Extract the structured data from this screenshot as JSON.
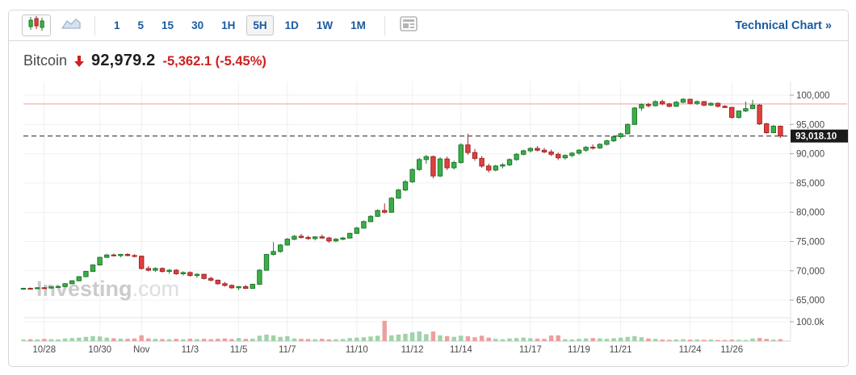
{
  "toolbar": {
    "chart_type_candles_icon": "candlestick-chart-type-icon",
    "chart_type_line_icon": "area-line-chart-type-icon",
    "timeframes": [
      {
        "label": "1",
        "selected": false
      },
      {
        "label": "5",
        "selected": false
      },
      {
        "label": "15",
        "selected": false
      },
      {
        "label": "30",
        "selected": false
      },
      {
        "label": "1H",
        "selected": false
      },
      {
        "label": "5H",
        "selected": true
      },
      {
        "label": "1D",
        "selected": false
      },
      {
        "label": "1W",
        "selected": false
      },
      {
        "label": "1M",
        "selected": false
      }
    ],
    "news_icon": "news-view-icon",
    "technical_chart_label": "Technical Chart",
    "technical_chart_arrow": "»"
  },
  "header": {
    "symbol": "Bitcoin",
    "direction": "down",
    "last_price": "92,979.2",
    "change": "-5,362.1 (-5.45%)"
  },
  "watermark": {
    "bold": "Investing",
    "light": ".com"
  },
  "chart_data": {
    "type": "candlestick",
    "title": "Bitcoin 5H candlestick chart with volume",
    "y_axis": {
      "side": "right",
      "ticks": [
        "100,000",
        "95,000",
        "90,000",
        "85,000",
        "80,000",
        "75,000",
        "70,000",
        "65,000"
      ],
      "tick_values": [
        100000,
        95000,
        90000,
        85000,
        80000,
        75000,
        70000,
        65000
      ]
    },
    "x_axis": {
      "ticks": [
        {
          "label": "10/28",
          "i": 3
        },
        {
          "label": "10/30",
          "i": 11
        },
        {
          "label": "Nov",
          "i": 17
        },
        {
          "label": "11/3",
          "i": 24
        },
        {
          "label": "11/5",
          "i": 31
        },
        {
          "label": "11/7",
          "i": 38
        },
        {
          "label": "11/10",
          "i": 48
        },
        {
          "label": "11/12",
          "i": 56
        },
        {
          "label": "11/14",
          "i": 63
        },
        {
          "label": "11/17",
          "i": 73
        },
        {
          "label": "11/19",
          "i": 80
        },
        {
          "label": "11/21",
          "i": 86
        },
        {
          "label": "11/24",
          "i": 96
        },
        {
          "label": "11/26",
          "i": 102
        }
      ]
    },
    "last_price_label": "93,018.10",
    "last_price_value": 93018.1,
    "resistance_line_value": 98500,
    "volume_axis_label": "100.0k",
    "volume_axis_value_k": 100,
    "candles": [
      [
        66950,
        67100,
        66750,
        67000
      ],
      [
        67000,
        67150,
        66850,
        66950
      ],
      [
        66950,
        67200,
        66850,
        67100
      ],
      [
        67100,
        67250,
        66950,
        67050
      ],
      [
        67050,
        67350,
        66950,
        67250
      ],
      [
        67250,
        67450,
        67100,
        67300
      ],
      [
        67300,
        67900,
        67200,
        67800
      ],
      [
        67800,
        68400,
        67700,
        68300
      ],
      [
        68300,
        69100,
        68200,
        69000
      ],
      [
        69000,
        70000,
        68900,
        69900
      ],
      [
        69900,
        71100,
        69800,
        71000
      ],
      [
        71000,
        72400,
        70900,
        72300
      ],
      [
        72300,
        72900,
        72200,
        72700
      ],
      [
        72700,
        72950,
        72450,
        72600
      ],
      [
        72600,
        72900,
        72300,
        72800
      ],
      [
        72800,
        73000,
        72500,
        72600
      ],
      [
        72600,
        72850,
        72300,
        72500
      ],
      [
        72500,
        72600,
        70200,
        70400
      ],
      [
        70400,
        70800,
        69900,
        70100
      ],
      [
        70100,
        70600,
        69800,
        70400
      ],
      [
        70400,
        70600,
        69700,
        69900
      ],
      [
        69900,
        70300,
        69500,
        70100
      ],
      [
        70100,
        70300,
        69300,
        69500
      ],
      [
        69500,
        69900,
        69200,
        69700
      ],
      [
        69700,
        69900,
        69000,
        69200
      ],
      [
        69200,
        69600,
        68800,
        69400
      ],
      [
        69400,
        69500,
        68500,
        68700
      ],
      [
        68700,
        69000,
        68200,
        68400
      ],
      [
        68400,
        68500,
        67600,
        67800
      ],
      [
        67800,
        68100,
        67300,
        67500
      ],
      [
        67500,
        67700,
        66900,
        67100
      ],
      [
        67100,
        67400,
        66700,
        67300
      ],
      [
        67300,
        67600,
        66900,
        67000
      ],
      [
        67000,
        67800,
        66900,
        67700
      ],
      [
        67700,
        70300,
        67600,
        70100
      ],
      [
        70100,
        72900,
        70000,
        72800
      ],
      [
        72800,
        74900,
        72600,
        73300
      ],
      [
        73300,
        74600,
        73100,
        74400
      ],
      [
        74400,
        75600,
        74300,
        75400
      ],
      [
        75400,
        76100,
        75200,
        75900
      ],
      [
        75900,
        76300,
        75500,
        75700
      ],
      [
        75700,
        76000,
        75300,
        75500
      ],
      [
        75500,
        75900,
        75200,
        75800
      ],
      [
        75800,
        76200,
        75500,
        75600
      ],
      [
        75600,
        75800,
        74800,
        75100
      ],
      [
        75100,
        75600,
        74900,
        75400
      ],
      [
        75400,
        75800,
        75200,
        75600
      ],
      [
        75600,
        76500,
        75500,
        76400
      ],
      [
        76400,
        77500,
        76300,
        77300
      ],
      [
        77300,
        78600,
        77200,
        78400
      ],
      [
        78400,
        79500,
        78300,
        79300
      ],
      [
        79300,
        80500,
        79200,
        80300
      ],
      [
        80300,
        81500,
        79800,
        80000
      ],
      [
        80000,
        82600,
        79900,
        82400
      ],
      [
        82400,
        84000,
        82300,
        83800
      ],
      [
        83800,
        85500,
        83600,
        85200
      ],
      [
        85200,
        87500,
        85000,
        87300
      ],
      [
        87300,
        89300,
        87100,
        89000
      ],
      [
        89000,
        89800,
        88300,
        89500
      ],
      [
        89500,
        89700,
        85800,
        86200
      ],
      [
        86200,
        89400,
        86000,
        89100
      ],
      [
        89100,
        89500,
        87200,
        87600
      ],
      [
        87600,
        88800,
        87300,
        88500
      ],
      [
        88500,
        91800,
        88300,
        91500
      ],
      [
        91500,
        93400,
        89800,
        90200
      ],
      [
        90200,
        90800,
        88800,
        89200
      ],
      [
        89200,
        89600,
        87600,
        87900
      ],
      [
        87900,
        88300,
        86800,
        87200
      ],
      [
        87200,
        88100,
        87000,
        87900
      ],
      [
        87900,
        88400,
        87500,
        88100
      ],
      [
        88100,
        89200,
        87900,
        89000
      ],
      [
        89000,
        90100,
        88800,
        89900
      ],
      [
        89900,
        90700,
        89700,
        90500
      ],
      [
        90500,
        91100,
        90200,
        90900
      ],
      [
        90900,
        91300,
        90400,
        90600
      ],
      [
        90600,
        91000,
        90100,
        90300
      ],
      [
        90300,
        90700,
        89600,
        89900
      ],
      [
        89900,
        90200,
        88900,
        89300
      ],
      [
        89300,
        89900,
        89000,
        89700
      ],
      [
        89700,
        90300,
        89400,
        90100
      ],
      [
        90100,
        90800,
        89800,
        90600
      ],
      [
        90600,
        91300,
        90300,
        91100
      ],
      [
        91100,
        91600,
        90700,
        91000
      ],
      [
        91000,
        91800,
        90800,
        91600
      ],
      [
        91600,
        92400,
        91400,
        92200
      ],
      [
        92200,
        93100,
        92000,
        92900
      ],
      [
        92900,
        93600,
        92600,
        93400
      ],
      [
        93400,
        95200,
        93300,
        95000
      ],
      [
        95000,
        98000,
        94900,
        97800
      ],
      [
        97800,
        98600,
        97300,
        98400
      ],
      [
        98400,
        98700,
        97900,
        98200
      ],
      [
        98200,
        99100,
        98100,
        98900
      ],
      [
        98900,
        99200,
        98300,
        98500
      ],
      [
        98500,
        98700,
        97900,
        98100
      ],
      [
        98100,
        99000,
        98000,
        98800
      ],
      [
        98800,
        99500,
        98600,
        99300
      ],
      [
        99300,
        99400,
        98400,
        98600
      ],
      [
        98600,
        99100,
        98300,
        98900
      ],
      [
        98900,
        99000,
        98100,
        98300
      ],
      [
        98300,
        98800,
        98200,
        98600
      ],
      [
        98600,
        98800,
        97900,
        98100
      ],
      [
        98100,
        98300,
        97800,
        97900
      ],
      [
        97900,
        98000,
        96000,
        96200
      ],
      [
        96200,
        97400,
        96000,
        97300
      ],
      [
        97300,
        98900,
        97100,
        97700
      ],
      [
        97700,
        99200,
        97600,
        98300
      ],
      [
        98300,
        98500,
        94900,
        95100
      ],
      [
        95100,
        95300,
        93400,
        93600
      ],
      [
        93600,
        94900,
        93500,
        94700
      ],
      [
        94700,
        94800,
        92700,
        93018
      ]
    ],
    "volumes_k": [
      8,
      10,
      9,
      12,
      10,
      9,
      14,
      16,
      18,
      22,
      26,
      24,
      18,
      15,
      13,
      12,
      14,
      30,
      14,
      12,
      11,
      10,
      12,
      10,
      13,
      11,
      12,
      10,
      12,
      14,
      11,
      16,
      12,
      13,
      28,
      34,
      30,
      22,
      26,
      14,
      12,
      11,
      10,
      12,
      9,
      10,
      11,
      16,
      18,
      20,
      24,
      28,
      105,
      30,
      34,
      38,
      45,
      50,
      36,
      50,
      30,
      26,
      22,
      28,
      25,
      20,
      28,
      18,
      12,
      10,
      14,
      16,
      18,
      15,
      13,
      12,
      29,
      30,
      10,
      9,
      12,
      14,
      16,
      14,
      12,
      15,
      18,
      22,
      26,
      20,
      14,
      12,
      8,
      7,
      9,
      10,
      8,
      9,
      7,
      8,
      6,
      6,
      8,
      7,
      6,
      14,
      16,
      12,
      8,
      10
    ],
    "colors": {
      "up": "#3cae49",
      "up_border": "#1f7a2c",
      "down": "#e04040",
      "down_border": "#a02525",
      "volume_up": "#9fd3a8",
      "volume_down": "#ec9f9f",
      "resistance": "#f2b1b1",
      "dashed": "#3a3a3a",
      "grid": "#f0f0f0",
      "axis_text": "#4a4a4a",
      "accent_blue": "#1b5aa0",
      "negative_red": "#cc2222",
      "badge_bg": "#1a1a1a",
      "badge_text": "#ffffff"
    }
  }
}
